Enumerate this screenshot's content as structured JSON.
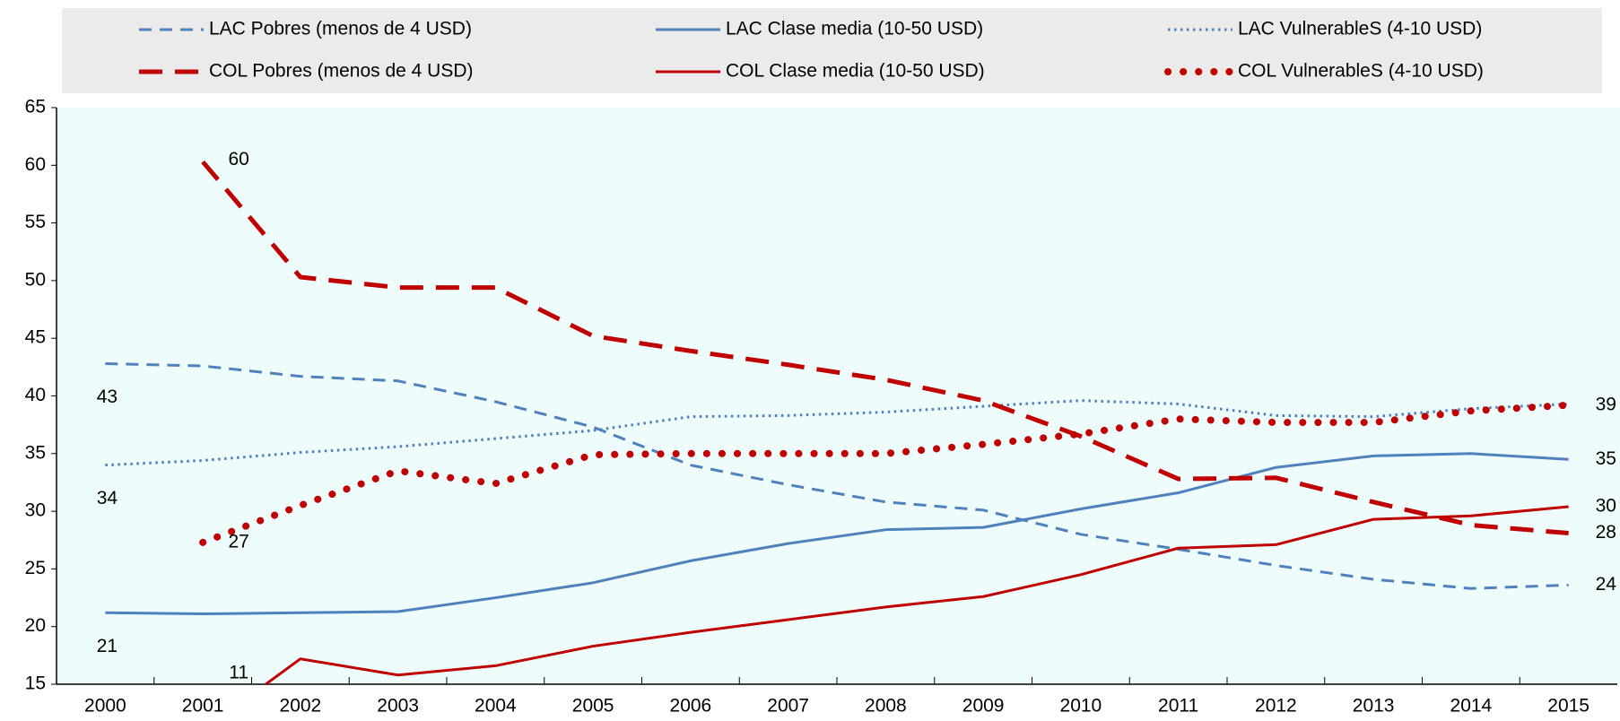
{
  "chart_data": {
    "type": "line",
    "categories": [
      "2000",
      "2001",
      "2002",
      "2003",
      "2004",
      "2005",
      "2006",
      "2007",
      "2008",
      "2009",
      "2010",
      "2011",
      "2012",
      "2013",
      "2014",
      "2015"
    ],
    "ylim": [
      15,
      65
    ],
    "yticks": [
      15,
      20,
      25,
      30,
      35,
      40,
      45,
      50,
      55,
      60,
      65
    ],
    "grid": false,
    "legend": "top",
    "series": [
      {
        "name": "LAC Pobres (menos de 4 USD)",
        "color": "#4f81bd",
        "dash": "dashed",
        "values": [
          42.8,
          42.6,
          41.7,
          41.3,
          39.5,
          37.3,
          34.0,
          32.3,
          30.8,
          30.1,
          28.0,
          26.7,
          25.3,
          24.1,
          23.3,
          23.6
        ],
        "value_labels": [
          "43",
          null,
          null,
          null,
          null,
          null,
          null,
          null,
          null,
          null,
          null,
          null,
          null,
          null,
          null,
          "24"
        ]
      },
      {
        "name": "LAC Clase media (10-50 USD)",
        "color": "#4f81bd",
        "dash": "solid",
        "values": [
          21.2,
          21.1,
          21.2,
          21.3,
          22.5,
          23.8,
          25.7,
          27.2,
          28.4,
          28.6,
          30.2,
          31.6,
          33.8,
          34.8,
          35.0,
          34.5
        ],
        "value_labels": [
          "21",
          null,
          null,
          null,
          null,
          null,
          null,
          null,
          null,
          null,
          null,
          null,
          null,
          null,
          null,
          "35"
        ]
      },
      {
        "name": "LAC VulnerableS (4-10 USD)",
        "color": "#4f81bd",
        "dash": "dotted",
        "values": [
          34.0,
          34.4,
          35.1,
          35.6,
          36.3,
          37.0,
          38.2,
          38.3,
          38.6,
          39.1,
          39.6,
          39.3,
          38.3,
          38.2,
          38.9,
          39.3
        ],
        "value_labels": [
          "34",
          null,
          null,
          null,
          null,
          null,
          null,
          null,
          null,
          null,
          null,
          null,
          null,
          null,
          null,
          null
        ]
      },
      {
        "name": "COL Pobres (menos de 4 USD)",
        "color": "#c00000",
        "dash": "dashed",
        "values": [
          null,
          60.3,
          50.3,
          49.4,
          49.4,
          45.2,
          43.9,
          42.7,
          41.4,
          39.6,
          36.5,
          32.8,
          32.9,
          30.8,
          28.8,
          28.1
        ],
        "value_labels": [
          null,
          "60",
          null,
          null,
          null,
          null,
          null,
          null,
          null,
          null,
          null,
          null,
          null,
          null,
          null,
          "28"
        ]
      },
      {
        "name": "COL Clase media (10-50 USD)",
        "color": "#c00000",
        "dash": "solid",
        "values": [
          null,
          11.0,
          17.2,
          15.8,
          16.6,
          18.3,
          19.5,
          20.6,
          21.7,
          22.6,
          24.5,
          26.8,
          27.1,
          29.3,
          29.6,
          30.4
        ],
        "value_labels": [
          null,
          "11",
          null,
          null,
          null,
          null,
          null,
          null,
          null,
          null,
          null,
          null,
          null,
          null,
          null,
          "30"
        ]
      },
      {
        "name": "COL VulnerableS (4-10 USD)",
        "color": "#c00000",
        "dash": "dotted",
        "values": [
          null,
          27.3,
          30.5,
          33.5,
          32.4,
          34.9,
          35.0,
          35.0,
          35.0,
          35.8,
          36.7,
          38.0,
          37.7,
          37.7,
          38.7,
          39.2
        ],
        "value_labels": [
          null,
          "27",
          null,
          null,
          null,
          null,
          null,
          null,
          null,
          null,
          null,
          null,
          null,
          null,
          null,
          "39"
        ]
      }
    ]
  }
}
